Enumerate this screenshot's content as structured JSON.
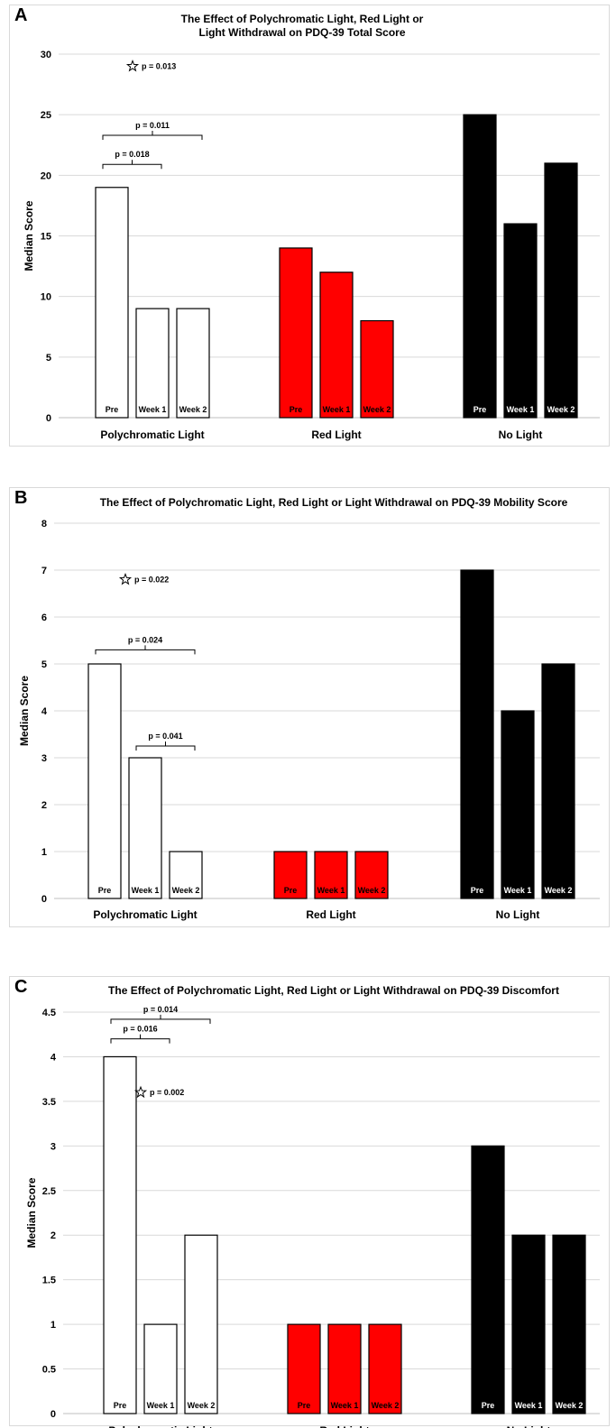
{
  "chart_data": [
    {
      "panel_label": "A",
      "type": "bar",
      "title": "The Effect of Polychromatic Light, Red Light or Light Withdrawal on PDQ-39 Total Score",
      "ylabel": "Median Score",
      "ylim": [
        0,
        30
      ],
      "yticks": [
        0,
        5,
        10,
        15,
        20,
        25,
        30
      ],
      "grid": true,
      "groups": [
        {
          "name": "Polychromatic Light",
          "color": "#ffffff",
          "bars": [
            {
              "label": "Pre",
              "value": 19
            },
            {
              "label": "Week 1",
              "value": 9
            },
            {
              "label": "Week 2",
              "value": 9
            }
          ]
        },
        {
          "name": "Red Light",
          "color": "#ff0000",
          "bars": [
            {
              "label": "Pre",
              "value": 14
            },
            {
              "label": "Week 1",
              "value": 12
            },
            {
              "label": "Week 2",
              "value": 8
            }
          ]
        },
        {
          "name": "No Light",
          "color": "#000000",
          "bars": [
            {
              "label": "Pre",
              "value": 25
            },
            {
              "label": "Week 1",
              "value": 16
            },
            {
              "label": "Week 2",
              "value": 21
            }
          ]
        }
      ],
      "annotations": [
        {
          "kind": "star",
          "text": "p = 0.013",
          "group": 0,
          "bar": 1,
          "at": 29
        },
        {
          "kind": "bracket",
          "text": "p = 0.011",
          "group": 0,
          "from": 0,
          "to": 2,
          "at": 23.3
        },
        {
          "kind": "bracket",
          "text": "p = 0.018",
          "group": 0,
          "from": 0,
          "to": 1,
          "at": 20.9
        }
      ]
    },
    {
      "panel_label": "B",
      "type": "bar",
      "title": "The Effect of Polychromatic Light, Red Light or Light Withdrawal on PDQ-39 Mobility Score",
      "ylabel": "Median Score",
      "ylim": [
        0,
        8
      ],
      "yticks": [
        0,
        1,
        2,
        3,
        4,
        5,
        6,
        7,
        8
      ],
      "grid": true,
      "groups": [
        {
          "name": "Polychromatic Light",
          "color": "#ffffff",
          "bars": [
            {
              "label": "Pre",
              "value": 5
            },
            {
              "label": "Week 1",
              "value": 3
            },
            {
              "label": "Week 2",
              "value": 1
            }
          ]
        },
        {
          "name": "Red Light",
          "color": "#ff0000",
          "bars": [
            {
              "label": "Pre",
              "value": 1
            },
            {
              "label": "Week 1",
              "value": 1
            },
            {
              "label": "Week 2",
              "value": 1
            }
          ]
        },
        {
          "name": "No Light",
          "color": "#000000",
          "bars": [
            {
              "label": "Pre",
              "value": 7
            },
            {
              "label": "Week 1",
              "value": 4
            },
            {
              "label": "Week 2",
              "value": 5
            }
          ]
        }
      ],
      "annotations": [
        {
          "kind": "star",
          "text": "p = 0.022",
          "group": 0,
          "bar": 1,
          "at": 6.8
        },
        {
          "kind": "bracket",
          "text": "p = 0.024",
          "group": 0,
          "from": 0,
          "to": 2,
          "at": 5.3
        },
        {
          "kind": "bracket",
          "text": "p = 0.041",
          "group": 0,
          "from": 1,
          "to": 2,
          "at": 3.25
        }
      ]
    },
    {
      "panel_label": "C",
      "type": "bar",
      "title": "The Effect of Polychromatic Light, Red Light or Light Withdrawal on PDQ-39 Discomfort",
      "ylabel": "Median Score",
      "ylim": [
        0,
        4.5
      ],
      "yticks": [
        0,
        0.5,
        1,
        1.5,
        2,
        2.5,
        3,
        3.5,
        4,
        4.5
      ],
      "grid": true,
      "groups": [
        {
          "name": "Polychromatic Light",
          "color": "#ffffff",
          "bars": [
            {
              "label": "Pre",
              "value": 4
            },
            {
              "label": "Week 1",
              "value": 1
            },
            {
              "label": "Week 2",
              "value": 2
            }
          ]
        },
        {
          "name": "Red Light",
          "color": "#ff0000",
          "bars": [
            {
              "label": "Pre",
              "value": 1
            },
            {
              "label": "Week 1",
              "value": 1
            },
            {
              "label": "Week 2",
              "value": 1
            }
          ]
        },
        {
          "name": "No Light",
          "color": "#000000",
          "bars": [
            {
              "label": "Pre",
              "value": 3
            },
            {
              "label": "Week 1",
              "value": 2
            },
            {
              "label": "Week 2",
              "value": 2
            }
          ]
        }
      ],
      "annotations": [
        {
          "kind": "star",
          "text": "p = 0.002",
          "group": 0,
          "bar": 1,
          "at": 3.6
        },
        {
          "kind": "bracket",
          "text": "p = 0.014",
          "group": 0,
          "from": 0,
          "to": 2,
          "at": 4.42
        },
        {
          "kind": "bracket",
          "text": "p = 0.016",
          "group": 0,
          "from": 0,
          "to": 1,
          "at": 4.2
        }
      ]
    }
  ]
}
